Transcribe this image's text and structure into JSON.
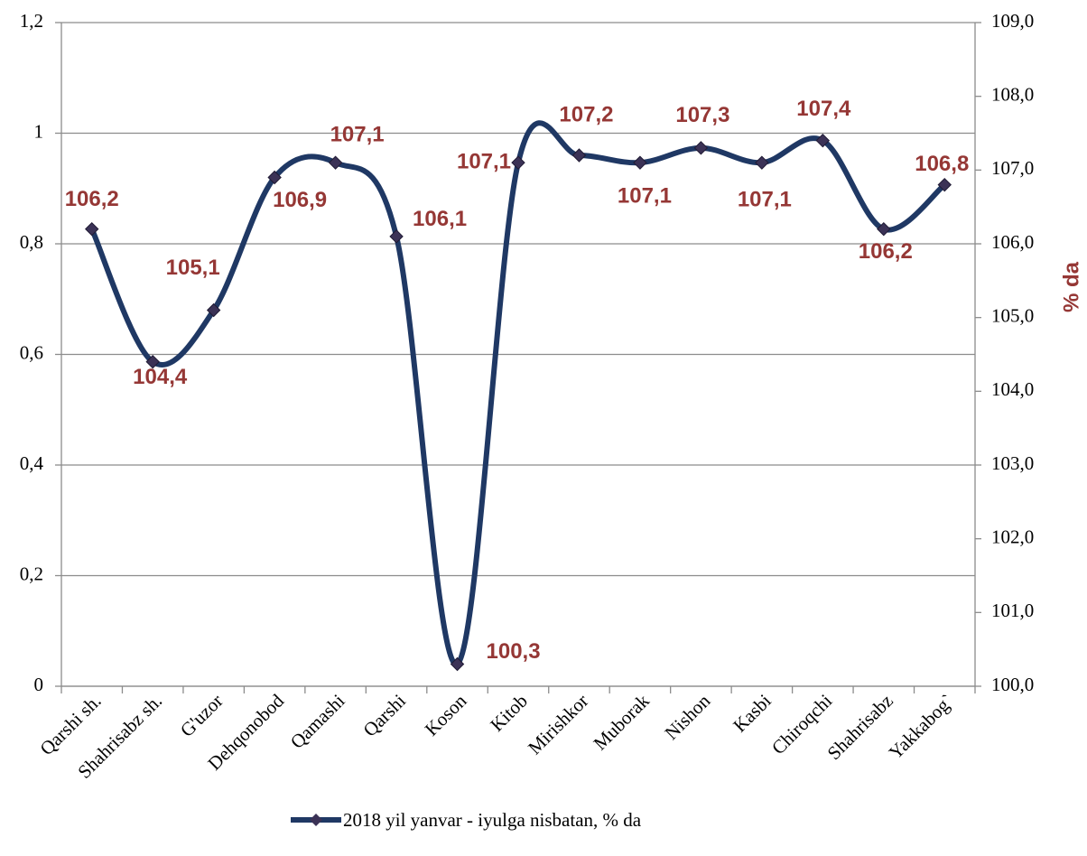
{
  "chart_data": {
    "type": "line",
    "categories": [
      "Qarshi sh.",
      "Shahrisabz sh.",
      "G'uzor",
      "Dehqonobod",
      "Qamashi",
      "Qarshi",
      "Koson",
      "Kitob",
      "Mirishkor",
      "Muborak",
      "Nishon",
      "Kasbi",
      "Chiroqchi",
      "Shahrisabz",
      "Yakkabog`"
    ],
    "series": [
      {
        "name": "2018 yil yanvar - iyulga nisbatan, % da",
        "color": "#1f3864",
        "axis": "y2",
        "values": [
          106.2,
          104.4,
          105.1,
          106.9,
          107.1,
          106.1,
          100.3,
          107.1,
          107.2,
          107.1,
          107.3,
          107.1,
          107.4,
          106.2,
          106.8
        ],
        "value_labels": [
          "106,2",
          "104,4",
          "105,1",
          "106,9",
          "107,1",
          "106,1",
          "100,3",
          "107,1",
          "107,2",
          "107,1",
          "107,3",
          "107,1",
          "107,4",
          "106,2",
          "106,8"
        ]
      }
    ],
    "ylim": [
      0,
      1.2
    ],
    "yticks": [
      0,
      {
        "value": 0.2,
        "label": "0,2"
      },
      {
        "value": 0.4,
        "label": "0,4"
      },
      {
        "value": 0.6,
        "label": "0,6"
      },
      {
        "value": 0.8,
        "label": "0,8"
      },
      1,
      {
        "value": 1.2,
        "label": "1,2"
      }
    ],
    "y2lim": [
      100,
      109
    ],
    "y2ticks": [
      {
        "value": 100,
        "label": "100,0"
      },
      {
        "value": 101,
        "label": "101,0"
      },
      {
        "value": 102,
        "label": "102,0"
      },
      {
        "value": 103,
        "label": "103,0"
      },
      {
        "value": 104,
        "label": "104,0"
      },
      {
        "value": 105,
        "label": "105,0"
      },
      {
        "value": 106,
        "label": "106,0"
      },
      {
        "value": 107,
        "label": "107,0"
      },
      {
        "value": 108,
        "label": "108,0"
      },
      {
        "value": 109,
        "label": "109,0"
      }
    ],
    "y2label": "% da",
    "grid": true,
    "legend": "bottom"
  }
}
